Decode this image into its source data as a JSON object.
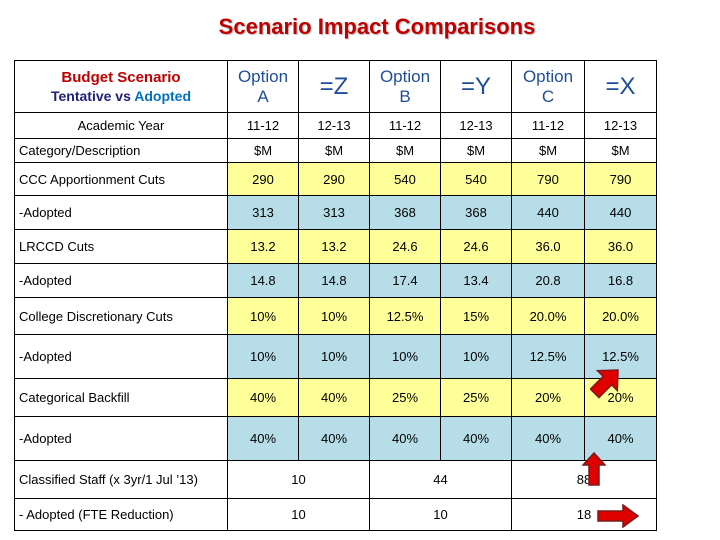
{
  "title": "Scenario Impact Comparisons",
  "header": {
    "scenario_label": "Budget Scenario",
    "tentative_label": "Tentative vs",
    "adopted_label": "Adopted",
    "options": [
      {
        "line1": "Option",
        "line2": "A"
      },
      {
        "eq": "=Z"
      },
      {
        "line1": "Option",
        "line2": "B"
      },
      {
        "eq": "=Y"
      },
      {
        "line1": "Option",
        "line2": "C"
      },
      {
        "eq": "=X"
      }
    ]
  },
  "academic_year": {
    "label": "Academic Year",
    "years": [
      "11-12",
      "12-13",
      "11-12",
      "12-13",
      "11-12",
      "12-13"
    ]
  },
  "category_row": {
    "label": "Category/Description",
    "units": [
      "$M",
      "$M",
      "$M",
      "$M",
      "$M",
      "$M"
    ]
  },
  "rows": [
    {
      "label": "CCC Apportionment Cuts",
      "values": [
        "290",
        "290",
        "540",
        "540",
        "790",
        "790"
      ]
    },
    {
      "label": "-Adopted",
      "values": [
        "313",
        "313",
        "368",
        "368",
        "440",
        "440"
      ]
    },
    {
      "label": "LRCCD Cuts",
      "values": [
        "13.2",
        "13.2",
        "24.6",
        "24.6",
        "36.0",
        "36.0"
      ]
    },
    {
      "label": "-Adopted",
      "values": [
        "14.8",
        "14.8",
        "17.4",
        "13.4",
        "20.8",
        "16.8"
      ]
    },
    {
      "label": "College Discretionary Cuts",
      "values": [
        "10%",
        "10%",
        "12.5%",
        "15%",
        "20.0%",
        "20.0%"
      ]
    },
    {
      "label": "-Adopted",
      "values": [
        "10%",
        "10%",
        "10%",
        "10%",
        "12.5%",
        "12.5%"
      ]
    },
    {
      "label": "Categorical Backfill",
      "values": [
        "40%",
        "40%",
        "25%",
        "25%",
        "20%",
        "20%"
      ]
    },
    {
      "label": "-Adopted",
      "values": [
        "40%",
        "40%",
        "40%",
        "40%",
        "40%",
        "40%"
      ]
    }
  ],
  "staff_rows": [
    {
      "label": "Classified Staff (x 3yr/1 Jul ’13)",
      "values": [
        "10",
        "44",
        "88"
      ]
    },
    {
      "label": "- Adopted (FTE Reduction)",
      "values": [
        "10",
        "10",
        "18"
      ]
    }
  ],
  "colors": {
    "title": "#c00000",
    "yellow": "#ffff99",
    "blue": "#b7dee8",
    "arrow": "#e00000"
  },
  "annotations": [
    "red-arrow-up-right",
    "red-arrow-up",
    "red-arrow-right"
  ]
}
